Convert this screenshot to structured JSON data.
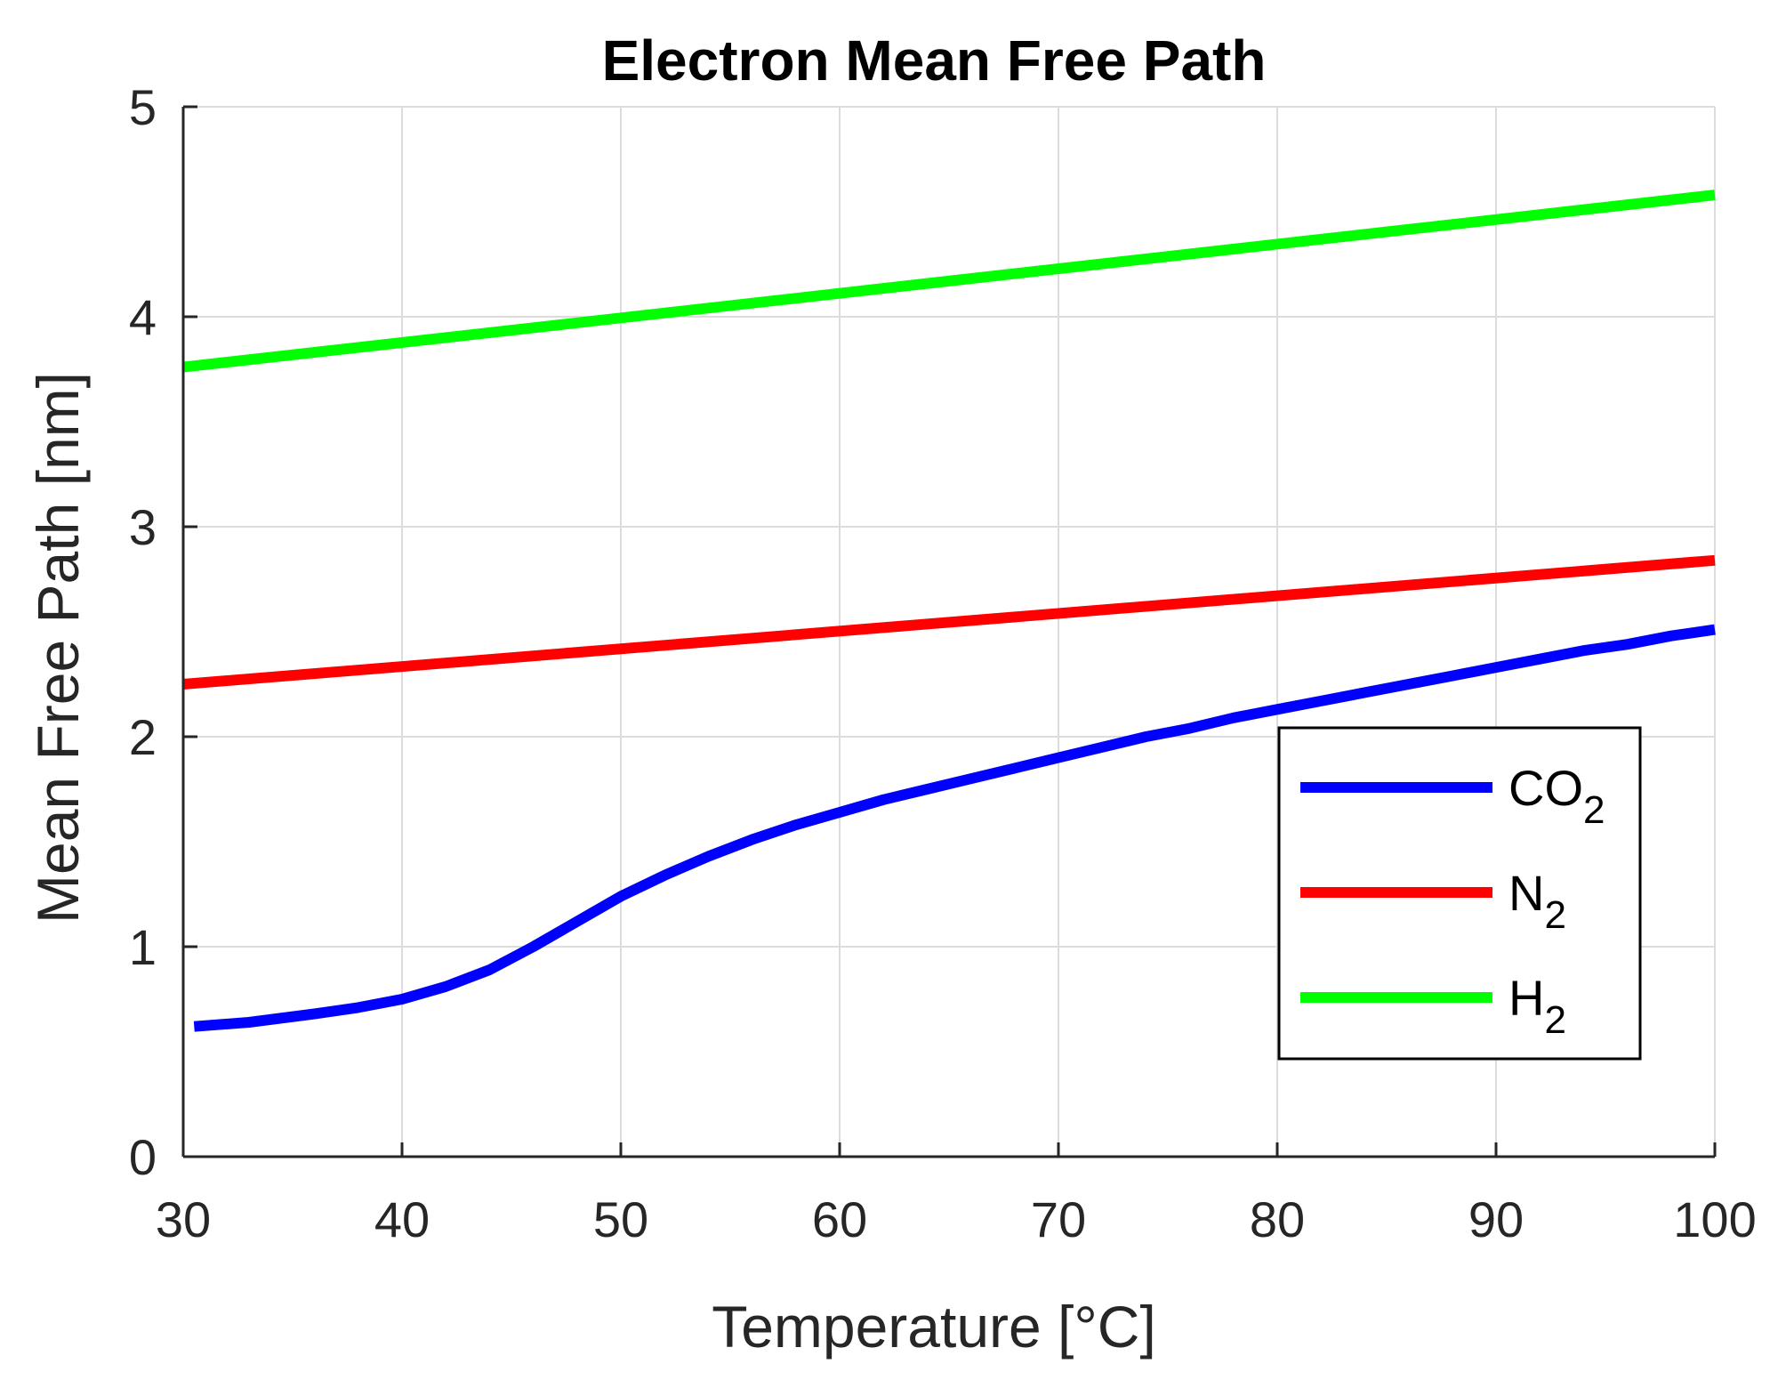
{
  "chart_data": {
    "type": "line",
    "title": "Electron Mean Free Path",
    "xlabel": "Temperature [°C]",
    "ylabel": "Mean Free Path [nm]",
    "xlim": [
      30,
      100
    ],
    "ylim": [
      0,
      5
    ],
    "xticks": [
      30,
      40,
      50,
      60,
      70,
      80,
      90,
      100
    ],
    "yticks": [
      0,
      1,
      2,
      3,
      4,
      5
    ],
    "xtick_labels": [
      "30",
      "40",
      "50",
      "60",
      "70",
      "80",
      "90",
      "100"
    ],
    "ytick_labels": [
      "0",
      "1",
      "2",
      "3",
      "4",
      "5"
    ],
    "grid": true,
    "legend_position": "lower-right",
    "series": [
      {
        "name": "CO2",
        "label_main": "CO",
        "label_sub": "2",
        "color": "#0000ff",
        "x": [
          30.5,
          33,
          36,
          38,
          40,
          42,
          44,
          46,
          48,
          50,
          52,
          54,
          56,
          58,
          60,
          62,
          64,
          66,
          68,
          70,
          72,
          74,
          76,
          78,
          80,
          82,
          84,
          86,
          88,
          90,
          92,
          94,
          96,
          98,
          100
        ],
        "y": [
          0.62,
          0.64,
          0.68,
          0.71,
          0.75,
          0.81,
          0.89,
          1.0,
          1.12,
          1.24,
          1.34,
          1.43,
          1.51,
          1.58,
          1.64,
          1.7,
          1.75,
          1.8,
          1.85,
          1.9,
          1.95,
          2.0,
          2.04,
          2.09,
          2.13,
          2.17,
          2.21,
          2.25,
          2.29,
          2.33,
          2.37,
          2.41,
          2.44,
          2.48,
          2.51
        ]
      },
      {
        "name": "N2",
        "label_main": "N",
        "label_sub": "2",
        "color": "#ff0000",
        "x": [
          30,
          100
        ],
        "y": [
          2.25,
          2.84
        ]
      },
      {
        "name": "H2",
        "label_main": "H",
        "label_sub": "2",
        "color": "#00ff00",
        "x": [
          30,
          100
        ],
        "y": [
          3.76,
          4.58
        ]
      }
    ]
  }
}
